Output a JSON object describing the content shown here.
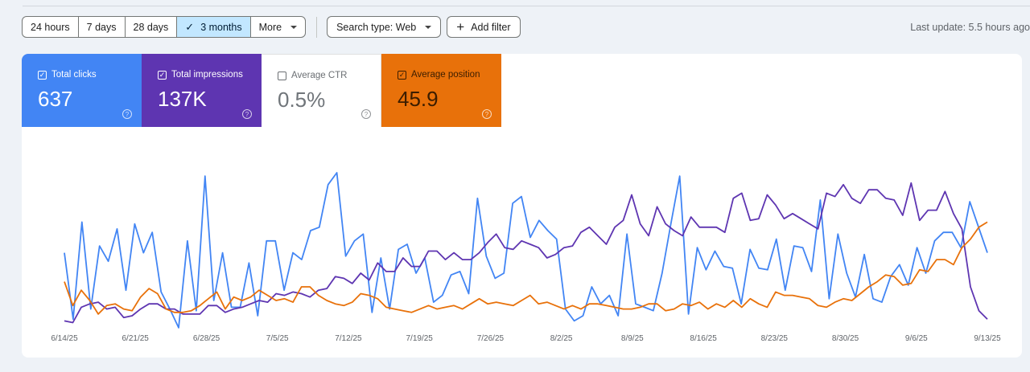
{
  "toolbar": {
    "ranges": [
      "24 hours",
      "7 days",
      "28 days",
      "3 months",
      "More"
    ],
    "active_check": "✓",
    "search_type": "Search type: Web",
    "add_filter": "Add filter",
    "last_update": "Last update: 5.5 hours ago"
  },
  "metrics": {
    "clicks": {
      "label": "Total clicks",
      "value": "637",
      "color": "#4285f4",
      "checked": true
    },
    "impressions": {
      "label": "Total impressions",
      "value": "137K",
      "color": "#5e35b1",
      "checked": true
    },
    "ctr": {
      "label": "Average CTR",
      "value": "0.5%",
      "color": "#ffffff",
      "checked": false
    },
    "position": {
      "label": "Average position",
      "value": "45.9",
      "color": "#e8710a",
      "checked": true
    }
  },
  "chart_data": {
    "type": "line",
    "x_start": "2025-06-14",
    "x_end": "2025-09-13",
    "x_tick_labels": [
      "6/14/25",
      "6/21/25",
      "6/28/25",
      "7/5/25",
      "7/12/25",
      "7/19/25",
      "7/26/25",
      "8/2/25",
      "8/9/25",
      "8/16/25",
      "8/23/25",
      "8/30/25",
      "9/6/25",
      "9/13/25"
    ],
    "grid": false,
    "legend": "none",
    "series": [
      {
        "name": "Total clicks",
        "color": "#4285f4",
        "values": [
          45,
          6,
          63,
          12,
          49,
          40,
          59,
          23,
          62,
          45,
          57,
          22,
          12,
          1,
          52,
          11,
          90,
          17,
          45,
          13,
          13,
          39,
          8,
          52,
          52,
          23,
          45,
          41,
          58,
          60,
          85,
          92,
          43,
          52,
          56,
          10,
          42,
          12,
          47,
          50,
          33,
          42,
          16,
          20,
          32,
          34,
          21,
          77,
          43,
          30,
          33,
          74,
          78,
          54,
          64,
          58,
          53,
          12,
          5,
          8,
          25,
          15,
          20,
          8,
          56,
          15,
          13,
          11,
          33,
          62,
          90,
          9,
          48,
          35,
          46,
          37,
          36,
          15,
          47,
          36,
          35,
          53,
          23,
          49,
          48,
          34,
          76,
          18,
          56,
          33,
          19,
          44,
          18,
          16,
          31,
          38,
          26,
          48,
          33,
          52,
          57,
          57,
          48,
          75,
          60,
          45
        ]
      },
      {
        "name": "Total impressions",
        "color": "#5e35b1",
        "values": [
          5,
          4,
          13,
          15,
          16,
          12,
          13,
          7,
          8,
          12,
          15,
          15,
          12,
          12,
          9,
          9,
          9,
          14,
          14,
          10,
          12,
          13,
          15,
          17,
          16,
          21,
          20,
          22,
          21,
          19,
          23,
          24,
          31,
          30,
          27,
          33,
          29,
          39,
          34,
          34,
          42,
          37,
          37,
          46,
          46,
          41,
          45,
          41,
          41,
          45,
          51,
          56,
          48,
          47,
          52,
          50,
          48,
          42,
          44,
          48,
          49,
          57,
          60,
          55,
          50,
          60,
          64,
          79,
          62,
          55,
          72,
          62,
          58,
          55,
          66,
          60,
          60,
          60,
          57,
          77,
          80,
          64,
          65,
          79,
          73,
          65,
          68,
          65,
          62,
          59,
          80,
          78,
          85,
          77,
          74,
          82,
          82,
          77,
          76,
          67,
          86,
          64,
          70,
          70,
          81,
          68,
          59,
          25,
          11,
          6
        ]
      },
      {
        "name": "Average position",
        "color": "#e8710a",
        "values": [
          28,
          14,
          23,
          17,
          9,
          14,
          15,
          12,
          11,
          19,
          24,
          21,
          12,
          10,
          10,
          11,
          14,
          18,
          22,
          12,
          19,
          17,
          19,
          23,
          20,
          17,
          18,
          16,
          25,
          25,
          20,
          17,
          15,
          14,
          16,
          21,
          20,
          18,
          13,
          12,
          11,
          10,
          12,
          14,
          12,
          13,
          14,
          12,
          15,
          18,
          15,
          16,
          15,
          14,
          17,
          20,
          15,
          16,
          14,
          12,
          14,
          12,
          15,
          15,
          14,
          13,
          12,
          12,
          13,
          15,
          15,
          11,
          12,
          15,
          14,
          16,
          12,
          15,
          13,
          17,
          13,
          18,
          15,
          13,
          22,
          20,
          20,
          19,
          18,
          14,
          13,
          16,
          18,
          17,
          21,
          25,
          28,
          32,
          31,
          26,
          27,
          35,
          34,
          41,
          41,
          38,
          48,
          53,
          60,
          63
        ]
      }
    ]
  }
}
